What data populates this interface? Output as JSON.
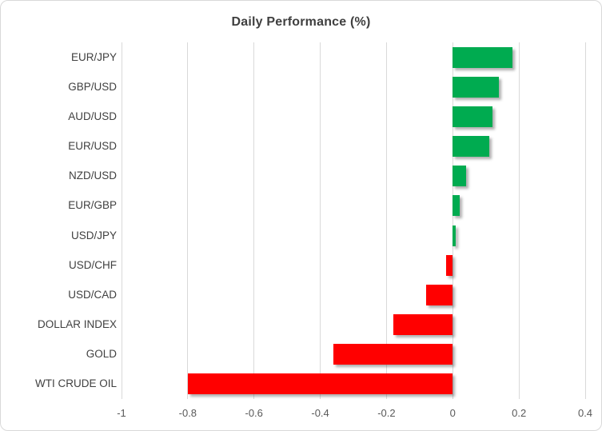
{
  "chart_data": {
    "type": "bar",
    "orientation": "horizontal",
    "title": "Daily Performance (%)",
    "categories": [
      "EUR/JPY",
      "GBP/USD",
      "AUD/USD",
      "EUR/USD",
      "NZD/USD",
      "EUR/GBP",
      "USD/JPY",
      "USD/CHF",
      "USD/CAD",
      "DOLLAR INDEX",
      "GOLD",
      "WTI CRUDE OIL"
    ],
    "values": [
      0.18,
      0.14,
      0.12,
      0.11,
      0.04,
      0.02,
      0.01,
      -0.02,
      -0.08,
      -0.18,
      -0.36,
      -0.8
    ],
    "xlabel": "",
    "ylabel": "",
    "xlim": [
      -1,
      0.4
    ],
    "x_ticks": [
      -1,
      -0.8,
      -0.6,
      -0.4,
      -0.2,
      0,
      0.2,
      0.4
    ],
    "x_tick_labels": [
      "-1",
      "-0.8",
      "-0.6",
      "-0.4",
      "-0.2",
      "0",
      "0.2",
      "0.4"
    ],
    "grid": "vertical-gridlines-on",
    "legend": "none",
    "colors": {
      "positive_bar": "#00ab50",
      "negative_bar": "#ff0000",
      "gridline": "#d9d9d9",
      "title_text": "#3f3f3f",
      "category_text": "#404040",
      "tick_text": "#595959",
      "frame_border": "#d9d9d9",
      "background": "#ffffff"
    }
  }
}
